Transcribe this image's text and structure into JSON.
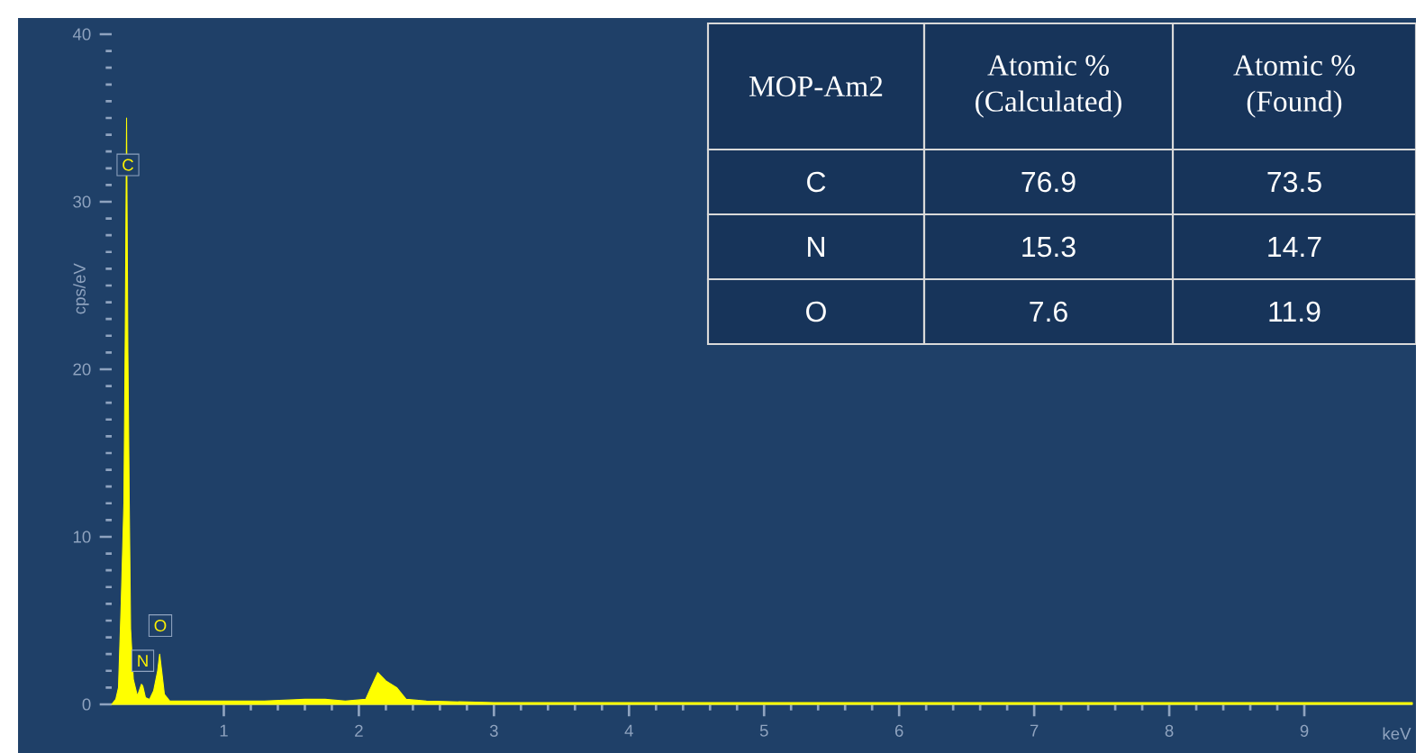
{
  "chart_data": {
    "type": "area",
    "ylabel": "cps/eV",
    "xlabel": "keV",
    "xlim": [
      0.17,
      9.8
    ],
    "ylim": [
      0,
      40
    ],
    "xticks": [
      1,
      2,
      3,
      4,
      5,
      6,
      7,
      8,
      9
    ],
    "yticks": [
      0,
      10,
      20,
      30,
      40
    ],
    "series": [
      {
        "color": "#ffff00",
        "x": [
          0.17,
          0.2,
          0.22,
          0.24,
          0.26,
          0.27,
          0.28,
          0.29,
          0.3,
          0.31,
          0.33,
          0.36,
          0.39,
          0.4,
          0.42,
          0.45,
          0.48,
          0.51,
          0.525,
          0.54,
          0.56,
          0.6,
          0.8,
          1.0,
          1.3,
          1.6,
          1.75,
          1.9,
          2.05,
          2.1,
          2.14,
          2.2,
          2.28,
          2.35,
          2.5,
          3,
          4,
          5,
          6,
          7,
          8,
          9,
          9.8
        ],
        "values": [
          0,
          0.3,
          1,
          6,
          12,
          22,
          35,
          21,
          12,
          4.5,
          1.5,
          0.5,
          1.2,
          1.1,
          0.4,
          0.3,
          0.8,
          2,
          3,
          2,
          0.6,
          0.2,
          0.2,
          0.2,
          0.2,
          0.3,
          0.3,
          0.2,
          0.3,
          1.2,
          1.9,
          1.4,
          1,
          0.3,
          0.2,
          0.1,
          0.1,
          0.1,
          0.1,
          0.1,
          0.1,
          0.1,
          0.1
        ]
      }
    ],
    "annotations": [
      {
        "text": "C",
        "x": 0.29,
        "y": 32.2
      },
      {
        "text": "N",
        "x": 0.4,
        "y": 2.6
      },
      {
        "text": "O",
        "x": 0.53,
        "y": 4.7
      },
      "MOP-Am2",
      "Atomic %\n(Calculated)",
      "Atomic %\n(Found)",
      "C",
      "76.9",
      "73.5",
      "N",
      "15.3",
      "14.7",
      "O",
      "7.6",
      "11.9"
    ]
  }
}
